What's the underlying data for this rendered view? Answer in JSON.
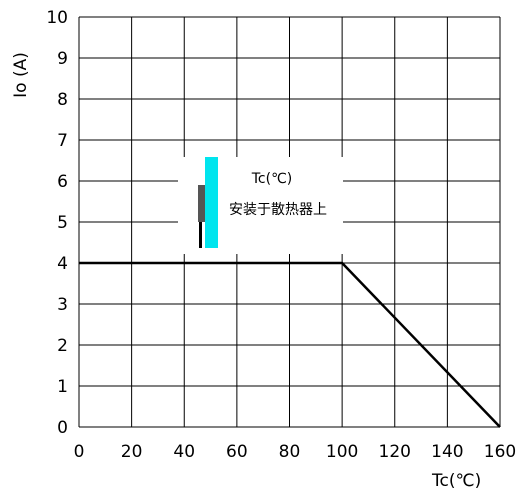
{
  "chart_data": {
    "type": "line",
    "xlabel": "Tc(℃)",
    "ylabel": "Io (A)",
    "xlim": [
      0,
      160
    ],
    "ylim": [
      0,
      10
    ],
    "x_ticks": [
      "0",
      "20",
      "40",
      "60",
      "80",
      "100",
      "120",
      "140",
      "160"
    ],
    "y_ticks": [
      "0",
      "1",
      "2",
      "3",
      "4",
      "5",
      "6",
      "7",
      "8",
      "9",
      "10"
    ],
    "grid": true,
    "series": [
      {
        "x": [
          0,
          100,
          160
        ],
        "y": [
          4,
          4,
          0
        ]
      }
    ],
    "legend_box": {
      "label": "Tc(℃)",
      "note": "安装于散热器上"
    }
  },
  "colors": {
    "heatsink": "#00e5ee",
    "component": "#555555",
    "line": "#000000",
    "grid": "#000000"
  }
}
